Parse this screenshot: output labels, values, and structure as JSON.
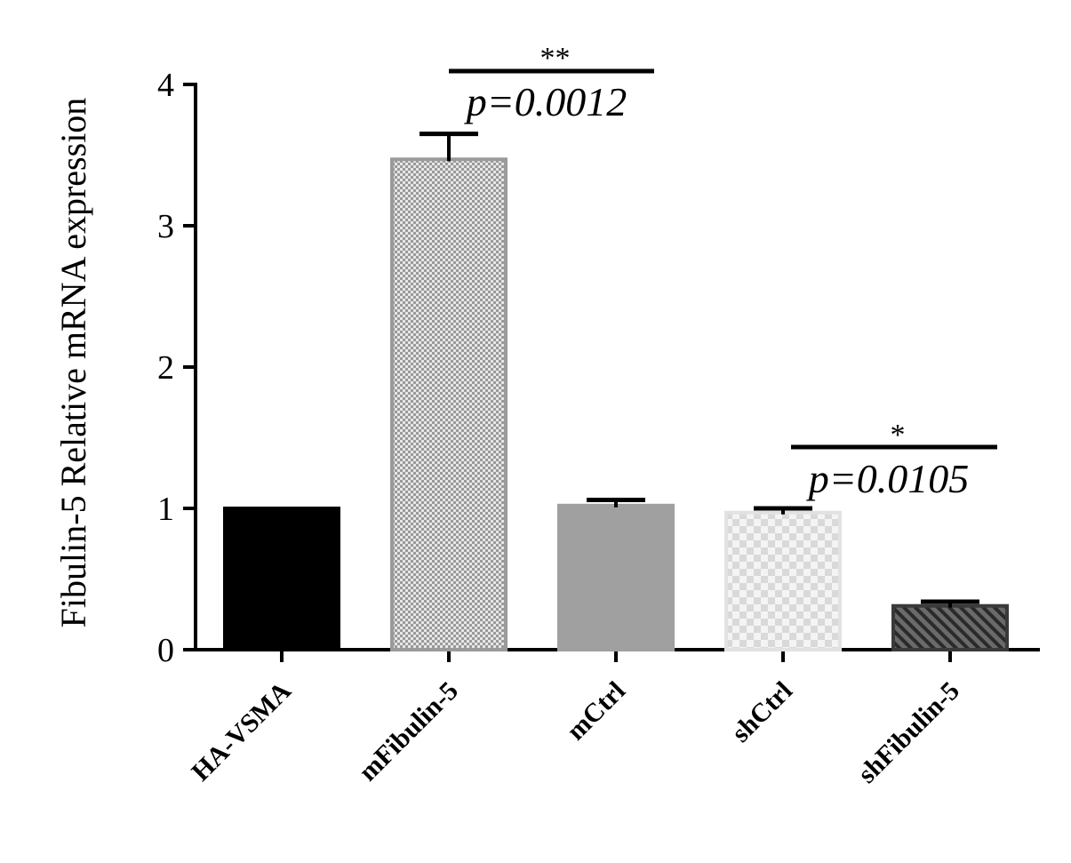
{
  "chart_data": {
    "type": "bar",
    "title": "",
    "xlabel": "",
    "ylabel": "Fibulin-5 Relative mRNA expression",
    "ylim": [
      0,
      4
    ],
    "yticks": [
      0,
      1,
      2,
      3,
      4
    ],
    "categories": [
      "HA-VSMA",
      "mFibulin-5",
      "mCtrl",
      "shCtrl",
      "shFibulin-5"
    ],
    "values": [
      1.0,
      3.47,
      1.02,
      0.97,
      0.31
    ],
    "errors": [
      0.0,
      0.18,
      0.04,
      0.03,
      0.03
    ],
    "colors": [
      "#000000",
      "#d8d8d8",
      "#a0a0a0",
      "#ececec",
      "#555555"
    ],
    "patterns": [
      "solid",
      "fine-dots",
      "solid",
      "checker",
      "hatch"
    ],
    "grid": false,
    "legend": "none",
    "annotations": [
      {
        "from": "mFibulin-5",
        "to": "mCtrl",
        "stars": "**",
        "text": "p=0.0012"
      },
      {
        "from": "shCtrl",
        "to": "shFibulin-5",
        "stars": "*",
        "text": "p=0.0105"
      }
    ]
  }
}
